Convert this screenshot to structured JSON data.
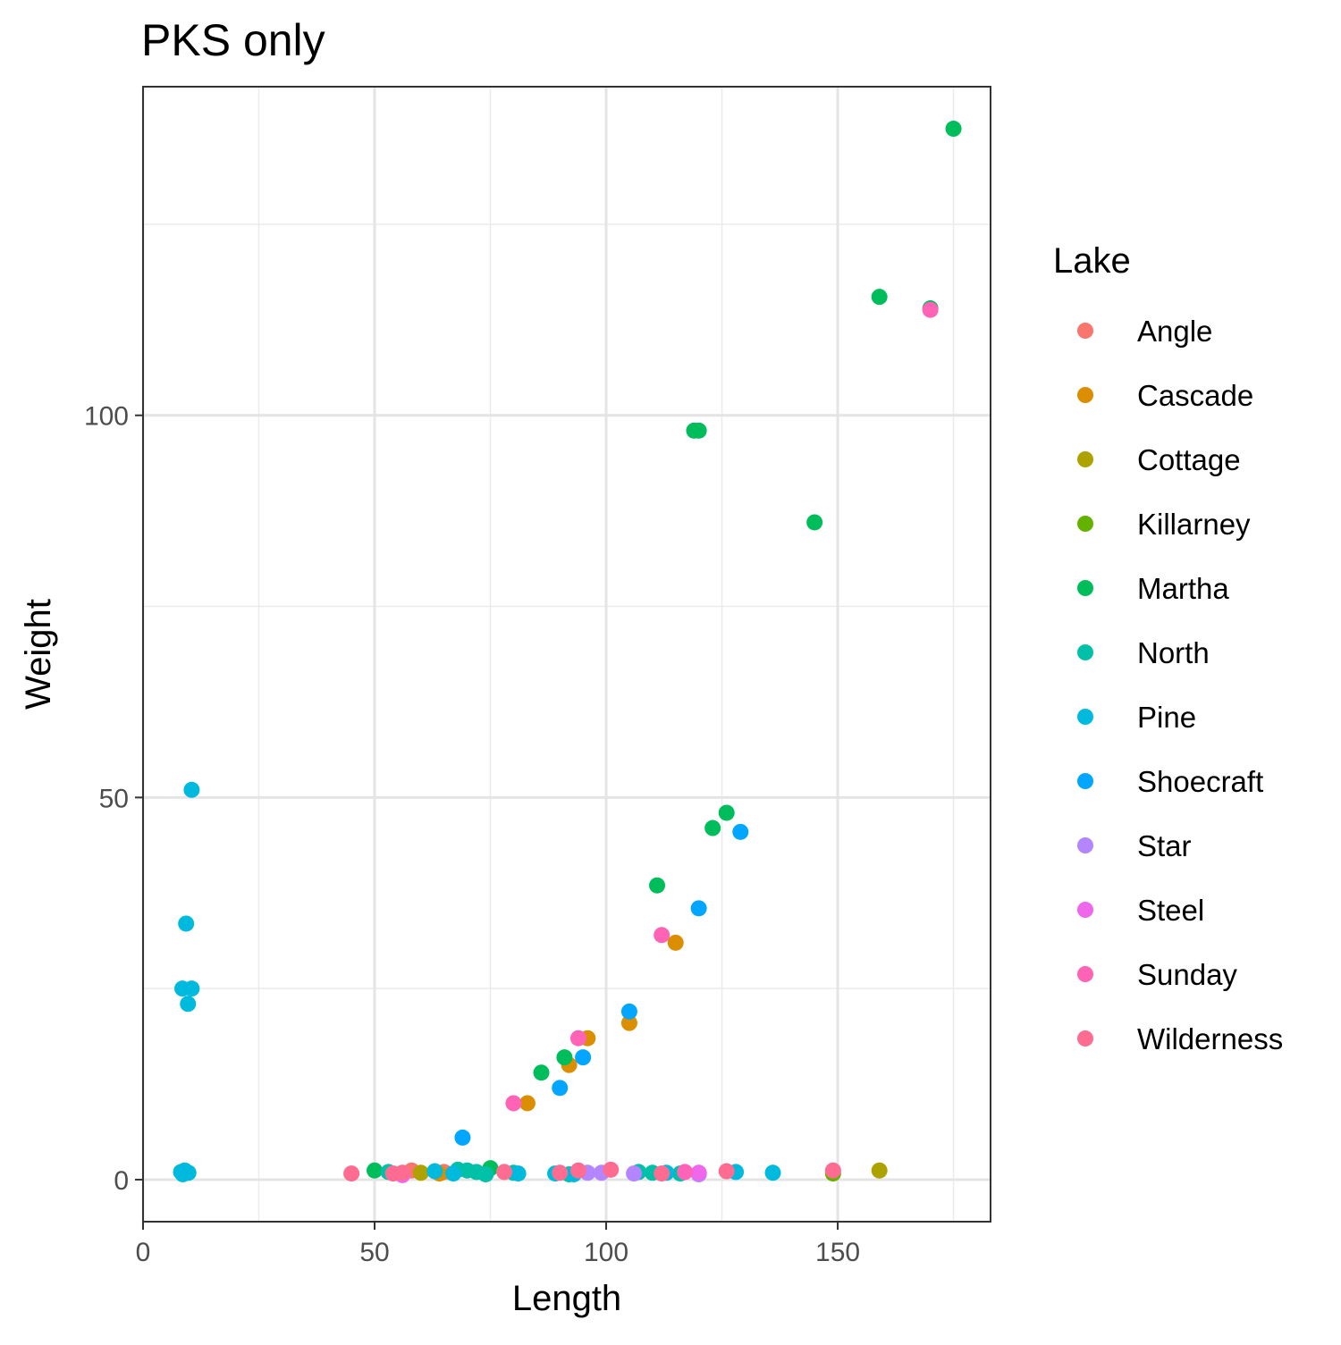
{
  "chart_data": {
    "type": "scatter",
    "title": "PKS only",
    "xlabel": "Length",
    "ylabel": "Weight",
    "xlim": [
      0,
      183
    ],
    "ylim": [
      -5.5,
      143
    ],
    "x_ticks": [
      0,
      50,
      100,
      150
    ],
    "y_ticks": [
      0,
      50,
      100
    ],
    "x_tick_labels": [
      "0",
      "50",
      "100",
      "150"
    ],
    "y_tick_labels": [
      "0",
      "50",
      "100"
    ],
    "grid": true,
    "legend_title": "Lake",
    "legend_position": "right",
    "series": [
      {
        "name": "Angle",
        "color": "#F8766D",
        "points": [
          [
            58,
            1.2
          ],
          [
            65,
            1.0
          ]
        ]
      },
      {
        "name": "Cascade",
        "color": "#DB8E00",
        "points": [
          [
            83,
            10
          ],
          [
            92,
            15
          ],
          [
            96,
            18.5
          ],
          [
            105,
            20.5
          ],
          [
            115,
            31
          ],
          [
            64,
            0.8
          ]
        ]
      },
      {
        "name": "Cottage",
        "color": "#AEA200",
        "points": [
          [
            60,
            0.9
          ],
          [
            159,
            1.2
          ]
        ]
      },
      {
        "name": "Killarney",
        "color": "#64B200",
        "points": [
          [
            149,
            0.8
          ]
        ]
      },
      {
        "name": "Martha",
        "color": "#00BD5C",
        "points": [
          [
            175,
            137.5
          ],
          [
            159,
            115.5
          ],
          [
            170,
            114
          ],
          [
            119,
            98
          ],
          [
            120,
            98
          ],
          [
            145,
            86
          ],
          [
            126,
            48
          ],
          [
            123,
            46
          ],
          [
            111,
            38.5
          ],
          [
            91,
            16
          ],
          [
            86,
            14
          ],
          [
            50,
            1.2
          ],
          [
            75,
            1.5
          ]
        ]
      },
      {
        "name": "North",
        "color": "#00C1A7",
        "points": [
          [
            53,
            1.0
          ],
          [
            68,
            1.3
          ],
          [
            70,
            1.2
          ],
          [
            72,
            1.0
          ],
          [
            74,
            0.7
          ],
          [
            80,
            0.9
          ],
          [
            92,
            0.7
          ],
          [
            107,
            1.0
          ],
          [
            110,
            0.9
          ],
          [
            116,
            0.8
          ]
        ]
      },
      {
        "name": "Pine",
        "color": "#00BADE",
        "points": [
          [
            10.5,
            51
          ],
          [
            9.3,
            33.5
          ],
          [
            8.5,
            25
          ],
          [
            10.5,
            25
          ],
          [
            9.7,
            23
          ],
          [
            8.2,
            1.0
          ],
          [
            9.0,
            1.2
          ],
          [
            9.8,
            0.9
          ],
          [
            8.6,
            0.7
          ],
          [
            63,
            1.1
          ],
          [
            67,
            0.8
          ],
          [
            81,
            0.8
          ],
          [
            89,
            0.8
          ],
          [
            93,
            0.7
          ],
          [
            113,
            0.9
          ],
          [
            128,
            1.0
          ],
          [
            136,
            0.9
          ]
        ]
      },
      {
        "name": "Shoecraft",
        "color": "#00A6FF",
        "points": [
          [
            129,
            45.5
          ],
          [
            120,
            35.5
          ],
          [
            105,
            22
          ],
          [
            95,
            16
          ],
          [
            90,
            12
          ],
          [
            69,
            5.5
          ]
        ]
      },
      {
        "name": "Star",
        "color": "#B385FF",
        "points": [
          [
            96,
            0.9
          ],
          [
            99,
            0.9
          ],
          [
            106,
            0.8
          ],
          [
            120,
            0.7
          ]
        ]
      },
      {
        "name": "Steel",
        "color": "#EF67EB",
        "points": [
          [
            120,
            0.9
          ],
          [
            56,
            0.6
          ]
        ]
      },
      {
        "name": "Sunday",
        "color": "#FF63B6",
        "points": [
          [
            170,
            113.8
          ],
          [
            112,
            32
          ],
          [
            94,
            18.5
          ],
          [
            80,
            10
          ],
          [
            117,
            1.0
          ]
        ]
      },
      {
        "name": "Wilderness",
        "color": "#FF6C91",
        "points": [
          [
            45,
            0.8
          ],
          [
            54,
            0.8
          ],
          [
            56,
            0.9
          ],
          [
            78,
            1.0
          ],
          [
            90,
            0.9
          ],
          [
            94,
            1.2
          ],
          [
            101,
            1.3
          ],
          [
            112,
            0.8
          ],
          [
            126,
            1.1
          ],
          [
            149,
            1.2
          ]
        ]
      }
    ]
  }
}
